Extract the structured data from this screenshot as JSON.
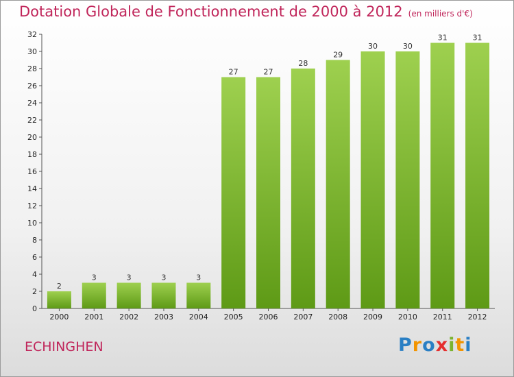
{
  "header": {
    "title": "Dotation Globale de Fonctionnement de 2000 à 2012",
    "unit": "(en milliers d'€)"
  },
  "footer": {
    "commune": "ECHINGHEN",
    "logo_letters": [
      "P",
      "r",
      "o",
      "x",
      "i",
      "t",
      "i"
    ]
  },
  "colors": {
    "title": "#c0255a",
    "bar_top": "#9ed04f",
    "bar_bottom": "#5e9a16"
  },
  "chart_data": {
    "type": "bar",
    "title": "Dotation Globale de Fonctionnement de 2000 à 2012",
    "subtitle": "(en milliers d'€)",
    "categories": [
      "2000",
      "2001",
      "2002",
      "2003",
      "2004",
      "2005",
      "2006",
      "2007",
      "2008",
      "2009",
      "2010",
      "2011",
      "2012"
    ],
    "values": [
      2,
      3,
      3,
      3,
      3,
      27,
      27,
      28,
      29,
      30,
      30,
      31,
      31
    ],
    "ylim": [
      0,
      32
    ],
    "yticks": [
      0,
      2,
      4,
      6,
      8,
      10,
      12,
      14,
      16,
      18,
      20,
      22,
      24,
      26,
      28,
      30,
      32
    ],
    "grid": false,
    "legend": "none"
  }
}
